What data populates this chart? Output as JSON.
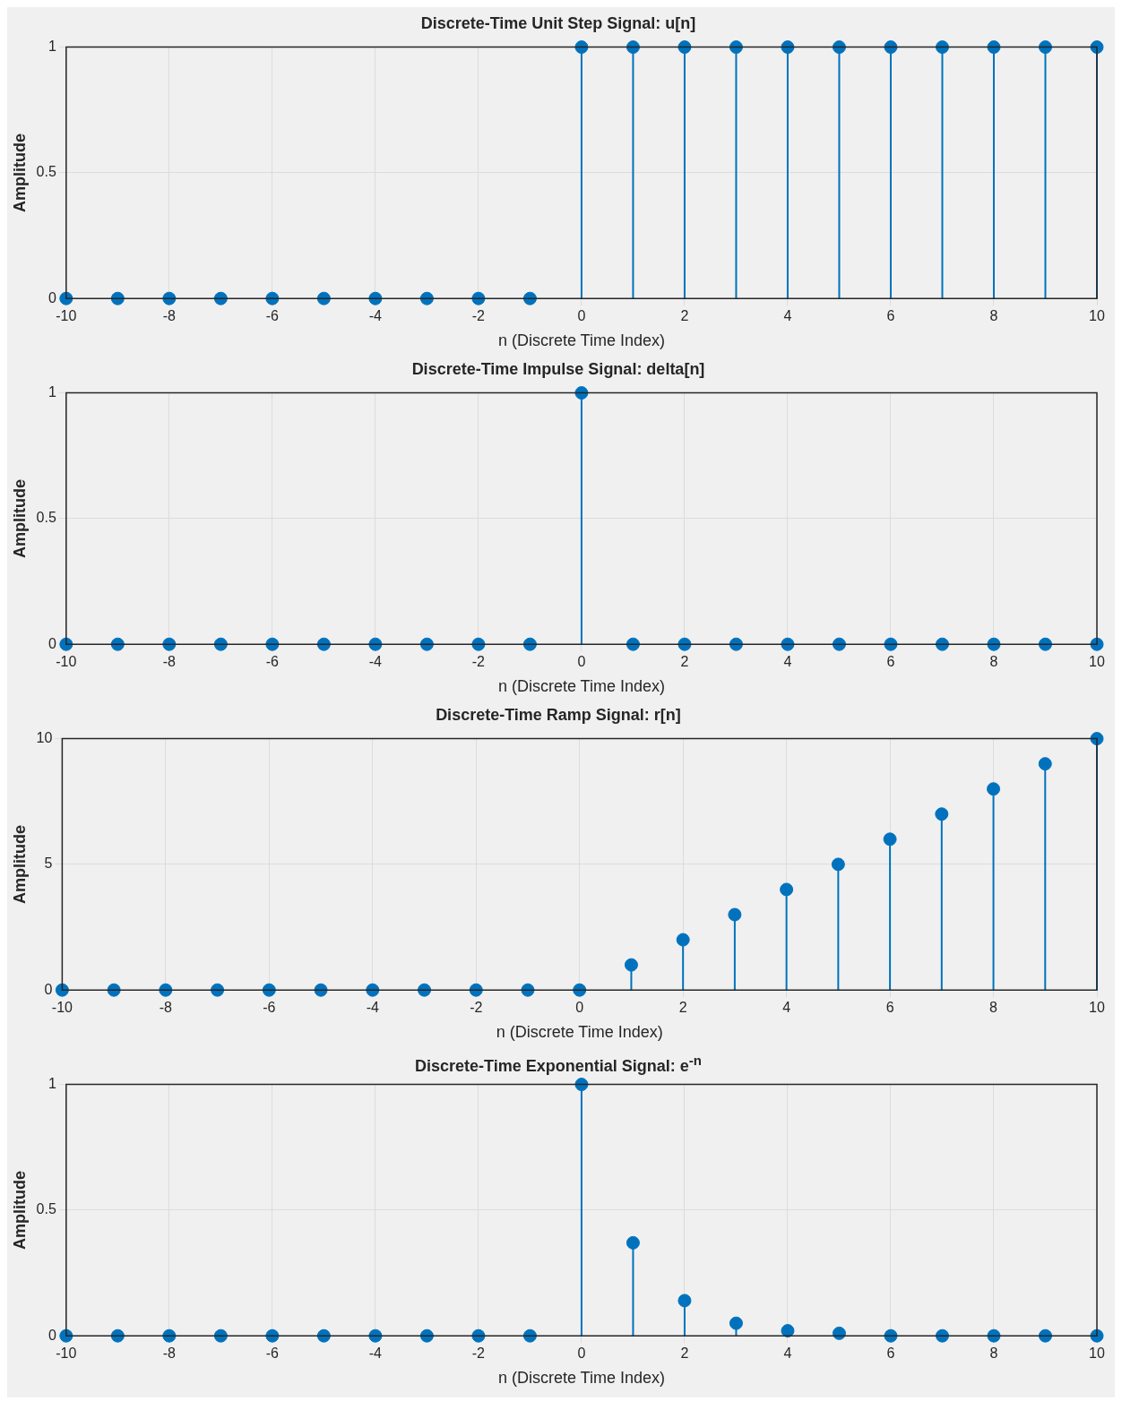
{
  "chart_data": [
    {
      "type": "lollipop",
      "title": "Discrete-Time Unit Step Signal: u[n]",
      "xlabel": "n (Discrete Time Index)",
      "ylabel": "Amplitude",
      "x": [
        -10,
        -9,
        -8,
        -7,
        -6,
        -5,
        -4,
        -3,
        -2,
        -1,
        0,
        1,
        2,
        3,
        4,
        5,
        6,
        7,
        8,
        9,
        10
      ],
      "values": [
        0,
        0,
        0,
        0,
        0,
        0,
        0,
        0,
        0,
        0,
        1,
        1,
        1,
        1,
        1,
        1,
        1,
        1,
        1,
        1,
        1
      ],
      "color": "#0072bd",
      "xlim": [
        -10,
        10
      ],
      "xticks": [
        -10,
        -8,
        -6,
        -4,
        -2,
        0,
        2,
        4,
        6,
        8,
        10
      ],
      "ylim": [
        0,
        1
      ],
      "yticks": [
        0,
        0.5,
        1
      ],
      "grid": true,
      "marker": "circle"
    },
    {
      "type": "lollipop",
      "title": "Discrete-Time Impulse Signal: delta[n]",
      "xlabel": "n (Discrete Time Index)",
      "ylabel": "Amplitude",
      "x": [
        -10,
        -9,
        -8,
        -7,
        -6,
        -5,
        -4,
        -3,
        -2,
        -1,
        0,
        1,
        2,
        3,
        4,
        5,
        6,
        7,
        8,
        9,
        10
      ],
      "values": [
        0,
        0,
        0,
        0,
        0,
        0,
        0,
        0,
        0,
        0,
        1,
        0,
        0,
        0,
        0,
        0,
        0,
        0,
        0,
        0,
        0
      ],
      "color": "#0072bd",
      "xlim": [
        -10,
        10
      ],
      "xticks": [
        -10,
        -8,
        -6,
        -4,
        -2,
        0,
        2,
        4,
        6,
        8,
        10
      ],
      "ylim": [
        0,
        1
      ],
      "yticks": [
        0,
        0.5,
        1
      ],
      "grid": true,
      "marker": "circle"
    },
    {
      "type": "lollipop",
      "title": "Discrete-Time Ramp Signal: r[n]",
      "xlabel": "n (Discrete Time Index)",
      "ylabel": "Amplitude",
      "x": [
        -10,
        -9,
        -8,
        -7,
        -6,
        -5,
        -4,
        -3,
        -2,
        -1,
        0,
        1,
        2,
        3,
        4,
        5,
        6,
        7,
        8,
        9,
        10
      ],
      "values": [
        0,
        0,
        0,
        0,
        0,
        0,
        0,
        0,
        0,
        0,
        0,
        1,
        2,
        3,
        4,
        5,
        6,
        7,
        8,
        9,
        10
      ],
      "color": "#0072bd",
      "xlim": [
        -10,
        10
      ],
      "xticks": [
        -10,
        -8,
        -6,
        -4,
        -2,
        0,
        2,
        4,
        6,
        8,
        10
      ],
      "ylim": [
        0,
        10
      ],
      "yticks": [
        0,
        5,
        10
      ],
      "grid": true,
      "marker": "circle"
    },
    {
      "type": "lollipop",
      "title": "Discrete-Time Exponential Signal: e$^{-n}$",
      "xlabel": "n (Discrete Time Index)",
      "ylabel": "Amplitude",
      "x": [
        -10,
        -9,
        -8,
        -7,
        -6,
        -5,
        -4,
        -3,
        -2,
        -1,
        0,
        1,
        2,
        3,
        4,
        5,
        6,
        7,
        8,
        9,
        10
      ],
      "values": [
        0,
        0,
        0,
        0,
        0,
        0,
        0,
        0,
        0,
        0,
        1,
        0.37,
        0.14,
        0.05,
        0.02,
        0.01,
        0,
        0,
        0,
        0,
        0
      ],
      "color": "#0072bd",
      "xlim": [
        -10,
        10
      ],
      "xticks": [
        -10,
        -8,
        -6,
        -4,
        -2,
        0,
        2,
        4,
        6,
        8,
        10
      ],
      "ylim": [
        0,
        1
      ],
      "yticks": [
        0,
        0.5,
        1
      ],
      "grid": true,
      "marker": "circle"
    }
  ]
}
